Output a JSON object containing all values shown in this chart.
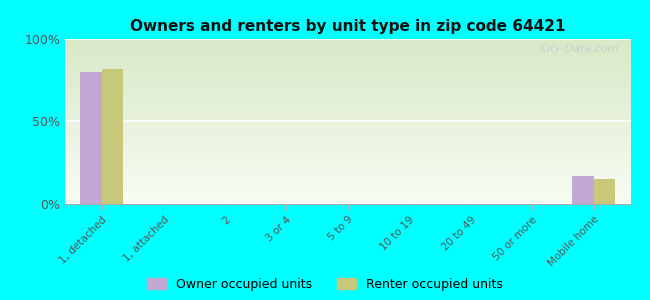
{
  "title": "Owners and renters by unit type in zip code 64421",
  "categories": [
    "1, detached",
    "1, attached",
    "2",
    "3 or 4",
    "5 to 9",
    "10 to 19",
    "20 to 49",
    "50 or more",
    "Mobile home"
  ],
  "owner_values": [
    80,
    0,
    0,
    0,
    0,
    0,
    0,
    0,
    17
  ],
  "renter_values": [
    82,
    0,
    0,
    0,
    0,
    0,
    0,
    0,
    15
  ],
  "owner_color": "#c4a8d4",
  "renter_color": "#c8c87a",
  "background_color": "#00ffff",
  "yticks": [
    0,
    50,
    100
  ],
  "ytick_labels": [
    "0%",
    "50%",
    "100%"
  ],
  "ylim": [
    0,
    100
  ],
  "bar_width": 0.35,
  "legend_owner": "Owner occupied units",
  "legend_renter": "Renter occupied units",
  "watermark": "City-Data.com"
}
